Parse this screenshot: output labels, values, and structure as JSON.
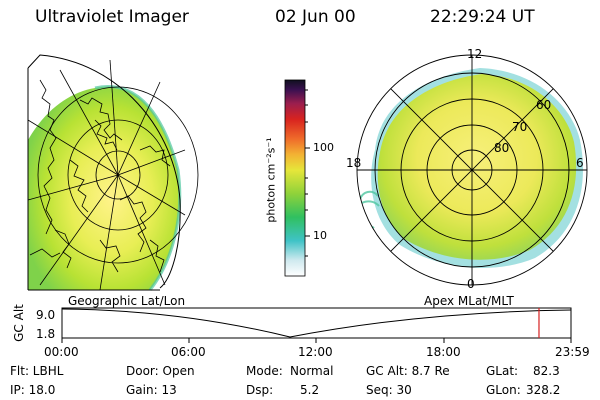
{
  "header": {
    "instrument": "Ultraviolet Imager",
    "date": "02 Jun 00",
    "time": "22:29:24 UT"
  },
  "left_panel": {
    "label": "Geographic Lat/Lon"
  },
  "right_panel": {
    "label": "Apex MLat/MLT",
    "mlt_labels": {
      "top": "12",
      "left": "18",
      "right": "6",
      "bottom": "0"
    },
    "lat_labels": [
      "60",
      "70",
      "80"
    ]
  },
  "colorbar": {
    "unit": "photon cm⁻²s⁻¹",
    "tick_labels": [
      "100",
      "10"
    ],
    "scale": "log"
  },
  "timeline": {
    "ylabel": "GC Alt",
    "ymax_label": "9.0",
    "ymin_label": "1.8",
    "time_ticks": [
      "00:00",
      "06:00",
      "12:00",
      "18:00",
      "23:59"
    ],
    "current_time_fraction": 0.9371,
    "marker_color": "#d62020"
  },
  "info": {
    "flt": "Flt: LBHL",
    "ip": "IP: 18.0",
    "door": "Door: Open",
    "gain": "Gain: 13",
    "mode_label": "Mode:",
    "mode_value": "Normal",
    "dsp_label": "Dsp:",
    "dsp_value": "5.2",
    "gcalt": "GC Alt: 8.7 Re",
    "seq": "Seq: 30",
    "glat_label": "GLat:",
    "glat_value": "82.3",
    "glon_label": "GLon:",
    "glon_value": "328.2"
  }
}
